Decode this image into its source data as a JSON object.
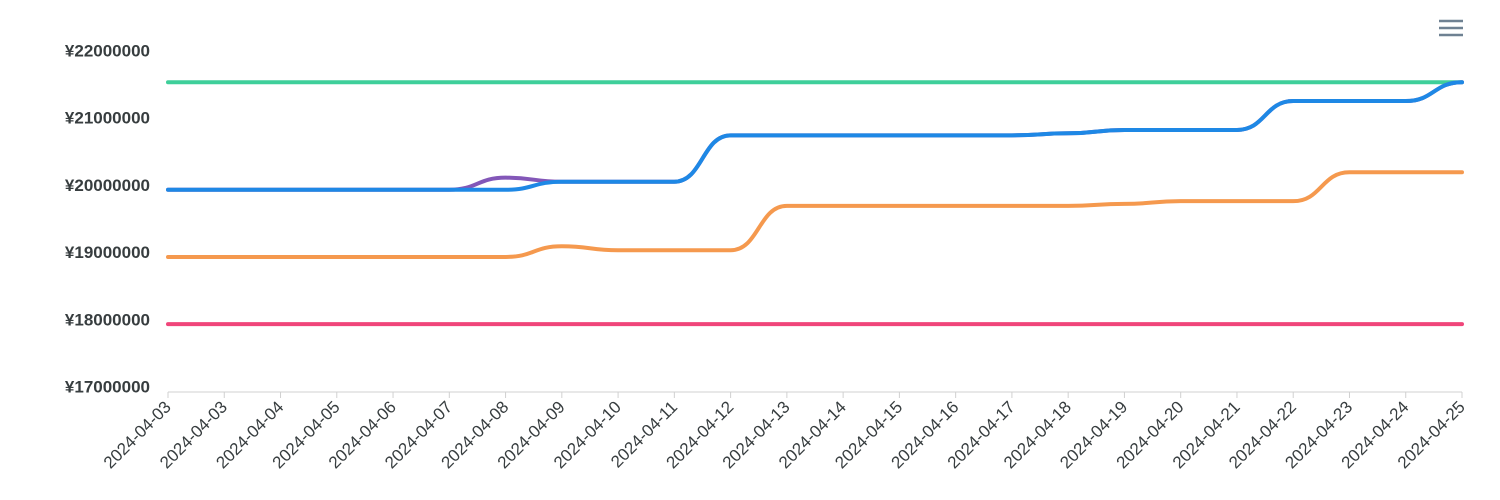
{
  "chart_data": {
    "type": "line",
    "categories": [
      "2024-04-03",
      "2024-04-03",
      "2024-04-04",
      "2024-04-05",
      "2024-04-06",
      "2024-04-07",
      "2024-04-08",
      "2024-04-09",
      "2024-04-10",
      "2024-04-11",
      "2024-04-12",
      "2024-04-13",
      "2024-04-14",
      "2024-04-15",
      "2024-04-16",
      "2024-04-17",
      "2024-04-18",
      "2024-04-19",
      "2024-04-20",
      "2024-04-21",
      "2024-04-22",
      "2024-04-23",
      "2024-04-24",
      "2024-04-25"
    ],
    "series": [
      {
        "color": "#3ecf9a",
        "values": [
          21550000,
          21550000,
          21550000,
          21550000,
          21550000,
          21550000,
          21550000,
          21550000,
          21550000,
          21550000,
          21550000,
          21550000,
          21550000,
          21550000,
          21550000,
          21550000,
          21550000,
          21550000,
          21550000,
          21550000,
          21550000,
          21550000,
          21550000,
          21550000
        ]
      },
      {
        "color": "#f0457a",
        "values": [
          17950000,
          17950000,
          17950000,
          17950000,
          17950000,
          17950000,
          17950000,
          17950000,
          17950000,
          17950000,
          17950000,
          17950000,
          17950000,
          17950000,
          17950000,
          17950000,
          17950000,
          17950000,
          17950000,
          17950000,
          17950000,
          17950000,
          17950000,
          17950000
        ]
      },
      {
        "color": "#f5994e",
        "values": [
          18950000,
          18950000,
          18950000,
          18950000,
          18950000,
          18950000,
          18950000,
          19110000,
          19050000,
          19050000,
          19050000,
          19710000,
          19710000,
          19710000,
          19710000,
          19710000,
          19710000,
          19740000,
          19780000,
          19780000,
          19780000,
          20210000,
          20210000,
          20210000
        ]
      },
      {
        "color": "#8357b8",
        "values": [
          19950000,
          19950000,
          19950000,
          19950000,
          19950000,
          19950000,
          20130000,
          20070000,
          20070000,
          20070000,
          20760000,
          20760000,
          20760000,
          20760000,
          20760000,
          20760000,
          20790000,
          20840000,
          20840000,
          20840000,
          21270000,
          21270000,
          21270000,
          21550000
        ]
      },
      {
        "color": "#1e88e5",
        "values": [
          19950000,
          19950000,
          19950000,
          19950000,
          19950000,
          19950000,
          19950000,
          20070000,
          20070000,
          20070000,
          20760000,
          20760000,
          20760000,
          20760000,
          20760000,
          20760000,
          20790000,
          20840000,
          20840000,
          20840000,
          21270000,
          21270000,
          21270000,
          21550000
        ]
      }
    ],
    "ylim": [
      17000000,
      22000000
    ],
    "yticks": [
      {
        "value": 17000000,
        "label": "¥17000000"
      },
      {
        "value": 18000000,
        "label": "¥18000000"
      },
      {
        "value": 19000000,
        "label": "¥19000000"
      },
      {
        "value": 20000000,
        "label": "¥20000000"
      },
      {
        "value": 21000000,
        "label": "¥21000000"
      },
      {
        "value": 22000000,
        "label": "¥22000000"
      }
    ],
    "grid": false
  }
}
